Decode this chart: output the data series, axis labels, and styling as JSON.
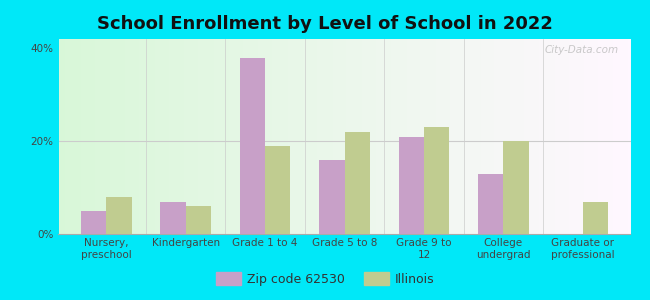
{
  "title": "School Enrollment by Level of School in 2022",
  "categories": [
    "Nursery,\npreschool",
    "Kindergarten",
    "Grade 1 to 4",
    "Grade 5 to 8",
    "Grade 9 to\n12",
    "College\nundergrad",
    "Graduate or\nprofessional"
  ],
  "zip_values": [
    5,
    7,
    38,
    16,
    21,
    13,
    0
  ],
  "il_values": [
    8,
    6,
    19,
    22,
    23,
    20,
    7
  ],
  "zip_color": "#c8a0c8",
  "il_color": "#c0cc90",
  "background_outer": "#00e8f8",
  "background_inner": "#e8f8e0",
  "title_fontsize": 13,
  "tick_fontsize": 7.5,
  "legend_fontsize": 9,
  "ylim": [
    0,
    42
  ],
  "yticks": [
    0,
    20,
    40
  ],
  "ytick_labels": [
    "0%",
    "20%",
    "40%"
  ],
  "bar_width": 0.32,
  "watermark": "City-Data.com",
  "zip_label": "Zip code 62530",
  "il_label": "Illinois"
}
